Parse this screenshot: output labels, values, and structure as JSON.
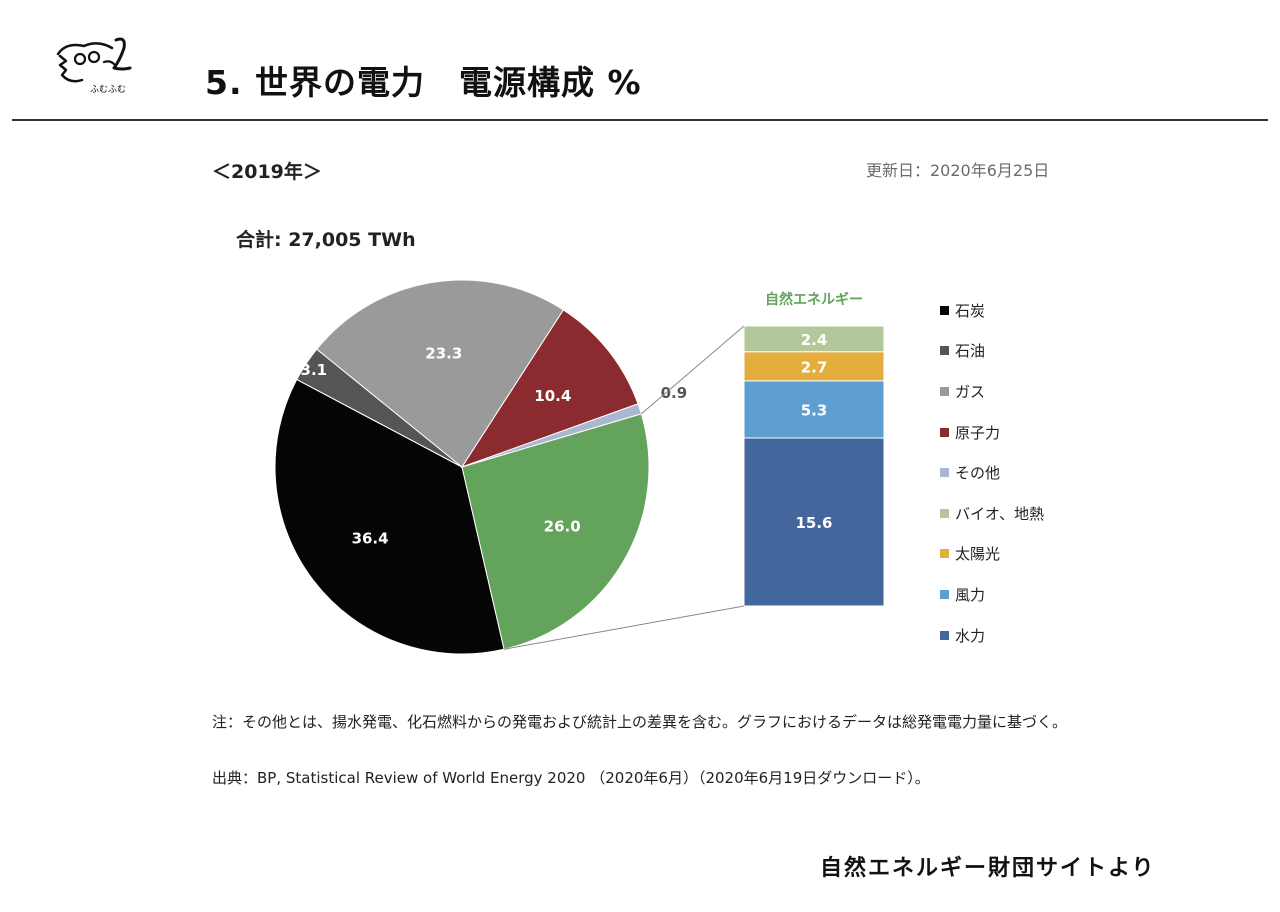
{
  "header": {
    "title": "5. 世界の電力　電源構成 %",
    "logo_text": "ふむふむ"
  },
  "subheader": {
    "year": "＜2019年＞",
    "updated": "更新日：2020年6月25日",
    "total": "合計: 27,005 TWh"
  },
  "chart_data": {
    "type": "pie",
    "unit": "%",
    "slices": [
      {
        "label": "石炭",
        "value": 36.4,
        "color": "#050505",
        "text_color": "#ffffff"
      },
      {
        "label": "石油",
        "value": 3.1,
        "color": "#555555",
        "text_color": "#ffffff"
      },
      {
        "label": "ガス",
        "value": 23.3,
        "color": "#9a9a9a",
        "text_color": "#ffffff"
      },
      {
        "label": "原子力",
        "value": 10.4,
        "color": "#8b2a2f",
        "text_color": "#ffffff"
      },
      {
        "label": "その他",
        "value": 0.9,
        "color": "#a9b7d0",
        "text_color": "#555555"
      },
      {
        "label": "自然エネルギー",
        "value": 26.0,
        "color": "#63a35c",
        "text_color": "#ffffff"
      }
    ],
    "breakdown": {
      "title": "自然エネルギー",
      "title_color": "#63a35c",
      "type": "stacked-bar",
      "segments": [
        {
          "label": "バイオ、地熱",
          "value": 2.4,
          "color": "#b3c89a"
        },
        {
          "label": "太陽光",
          "value": 2.7,
          "color": "#e3ae3e"
        },
        {
          "label": "風力",
          "value": 5.3,
          "color": "#5e9fd1"
        },
        {
          "label": "水力",
          "value": 15.6,
          "color": "#43679d"
        }
      ]
    },
    "legend": [
      {
        "label": "石炭",
        "color": "#050505"
      },
      {
        "label": "石油",
        "color": "#555555"
      },
      {
        "label": "ガス",
        "color": "#9a9a9a"
      },
      {
        "label": "原子力",
        "color": "#8b2a2f"
      },
      {
        "label": "その他",
        "color": "#a9b7d0"
      },
      {
        "label": "バイオ、地熱",
        "color": "#b3c89a"
      },
      {
        "label": "太陽光",
        "color": "#e3ae3e"
      },
      {
        "label": "風力",
        "color": "#5e9fd1"
      },
      {
        "label": "水力",
        "color": "#43679d"
      }
    ],
    "legend_position": "right"
  },
  "notes": {
    "note": "注：その他とは、揚水発電、化石燃料からの発電および統計上の差異を含む。グラフにおけるデータは総発電電力量に基づく。",
    "source": "出典：BP, Statistical Review of World Energy 2020 （2020年6月）（2020年6月19日ダウンロード）。"
  },
  "footer": {
    "credit": "自然エネルギー財団サイトより"
  }
}
